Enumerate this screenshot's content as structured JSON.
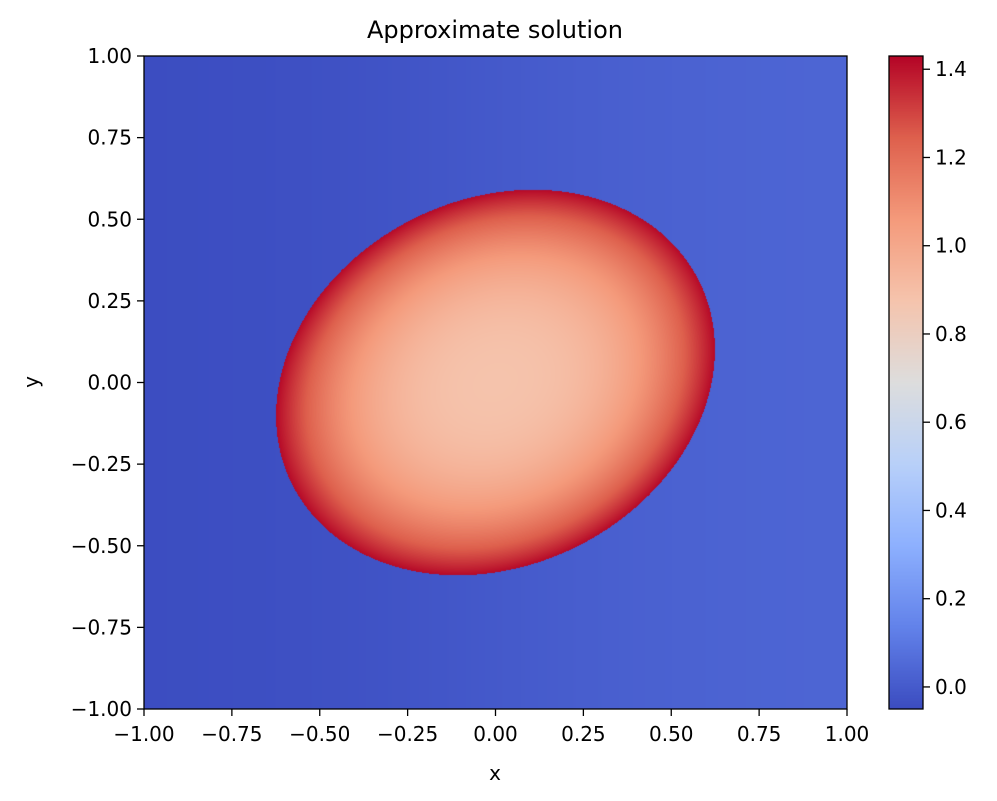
{
  "chart_data": {
    "type": "heatmap",
    "title": "Approximate solution",
    "xlabel": "x",
    "ylabel": "y",
    "xlim": [
      -1.0,
      1.0
    ],
    "ylim": [
      -1.0,
      1.0
    ],
    "x_ticks": [
      -1.0,
      -0.75,
      -0.5,
      -0.25,
      0.0,
      0.25,
      0.5,
      0.75,
      1.0
    ],
    "x_tick_labels": [
      "−1.00",
      "−0.75",
      "−0.50",
      "−0.25",
      "0.00",
      "0.25",
      "0.50",
      "0.75",
      "1.00"
    ],
    "y_ticks": [
      1.0,
      0.75,
      0.5,
      0.25,
      0.0,
      -0.25,
      -0.5,
      -0.75,
      -1.0
    ],
    "y_tick_labels": [
      "1.00",
      "0.75",
      "0.50",
      "0.25",
      "0.00",
      "−0.25",
      "−0.50",
      "−0.75",
      "−1.00"
    ],
    "colormap": "coolwarm",
    "colorbar": {
      "range": [
        -0.05,
        1.43
      ],
      "ticks": [
        0.0,
        0.2,
        0.4,
        0.6,
        0.8,
        1.0,
        1.2,
        1.4
      ],
      "tick_labels": [
        "0.0",
        "0.2",
        "0.4",
        "0.6",
        "0.8",
        "1.0",
        "1.2",
        "1.4"
      ]
    },
    "regions": {
      "outside": {
        "min": -0.05,
        "max": 0.05
      },
      "ellipse": {
        "center": [
          0.0,
          0.0
        ],
        "semi_axis_major": 0.66,
        "semi_axis_minor": 0.55,
        "rotation_deg": 36,
        "value_center": 0.88,
        "value_edge": 1.42
      }
    },
    "colors": {
      "coolwarm_low": "#3b4cc0",
      "coolwarm_mid": "#dddddd",
      "coolwarm_high": "#b40426"
    },
    "grid": false,
    "legend": "none"
  }
}
